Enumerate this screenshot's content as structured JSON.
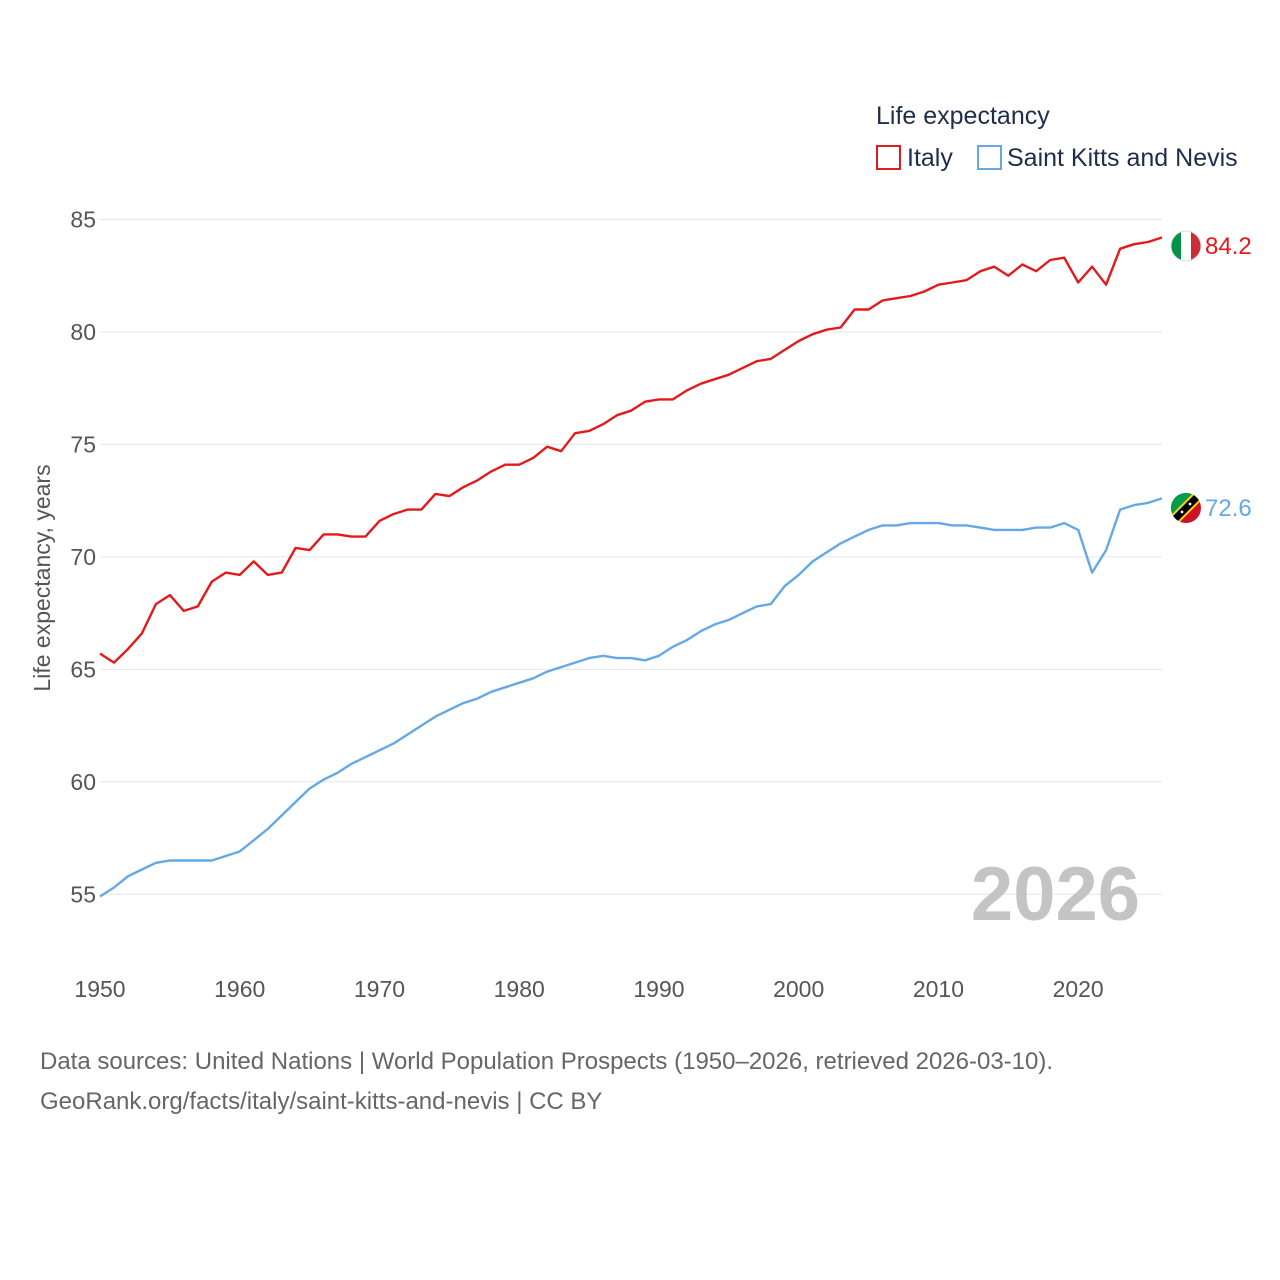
{
  "chart_data": {
    "type": "line",
    "title": "",
    "legend_title": "Life expectancy",
    "ylabel": "Life expectancy, years",
    "xlabel": "",
    "xlim": [
      1950,
      2026
    ],
    "ylim": [
      53.5,
      86
    ],
    "x_ticks": [
      "1950",
      "1960",
      "1970",
      "1980",
      "1990",
      "2000",
      "2010",
      "2020"
    ],
    "y_ticks": [
      "55",
      "60",
      "65",
      "70",
      "75",
      "80",
      "85"
    ],
    "watermark_year": "2026",
    "start_year": 1950,
    "series": [
      {
        "name": "Italy",
        "color": "#e31a1c",
        "end_label": "84.2",
        "flag": "italy-flag-icon",
        "values": [
          65.7,
          65.3,
          65.9,
          66.6,
          67.9,
          68.3,
          67.6,
          67.8,
          68.9,
          69.3,
          69.2,
          69.8,
          69.2,
          69.3,
          70.4,
          70.3,
          71.0,
          71.0,
          70.9,
          70.9,
          71.6,
          71.9,
          72.1,
          72.1,
          72.8,
          72.7,
          73.1,
          73.4,
          73.8,
          74.1,
          74.1,
          74.4,
          74.9,
          74.7,
          75.5,
          75.6,
          75.9,
          76.3,
          76.5,
          76.9,
          77.0,
          77.0,
          77.4,
          77.7,
          77.9,
          78.1,
          78.4,
          78.7,
          78.8,
          79.2,
          79.6,
          79.9,
          80.1,
          80.2,
          81.0,
          81.0,
          81.4,
          81.5,
          81.6,
          81.8,
          82.1,
          82.2,
          82.3,
          82.7,
          82.9,
          82.5,
          83.0,
          82.7,
          83.2,
          83.3,
          82.2,
          82.9,
          82.1,
          83.7,
          83.9,
          84.0,
          84.2
        ]
      },
      {
        "name": "Saint Kitts and Nevis",
        "color": "#64a8e6",
        "end_label": "72.6",
        "flag": "saint-kitts-and-nevis-flag-icon",
        "values": [
          54.9,
          55.3,
          55.8,
          56.1,
          56.4,
          56.5,
          56.5,
          56.5,
          56.5,
          56.7,
          56.9,
          57.4,
          57.9,
          58.5,
          59.1,
          59.7,
          60.1,
          60.4,
          60.8,
          61.1,
          61.4,
          61.7,
          62.1,
          62.5,
          62.9,
          63.2,
          63.5,
          63.7,
          64.0,
          64.2,
          64.4,
          64.6,
          64.9,
          65.1,
          65.3,
          65.5,
          65.6,
          65.5,
          65.5,
          65.4,
          65.6,
          66.0,
          66.3,
          66.7,
          67.0,
          67.2,
          67.5,
          67.8,
          67.9,
          68.7,
          69.2,
          69.8,
          70.2,
          70.6,
          70.9,
          71.2,
          71.4,
          71.4,
          71.5,
          71.5,
          71.5,
          71.4,
          71.4,
          71.3,
          71.2,
          71.2,
          71.2,
          71.3,
          71.3,
          71.5,
          71.2,
          69.3,
          70.3,
          72.1,
          72.3,
          72.4,
          72.6
        ]
      }
    ]
  },
  "source": {
    "line1": "Data sources: United Nations | World Population Prospects (1950–2026, retrieved 2026-03-10).",
    "line2": "GeoRank.org/facts/italy/saint-kitts-and-nevis | CC BY"
  }
}
